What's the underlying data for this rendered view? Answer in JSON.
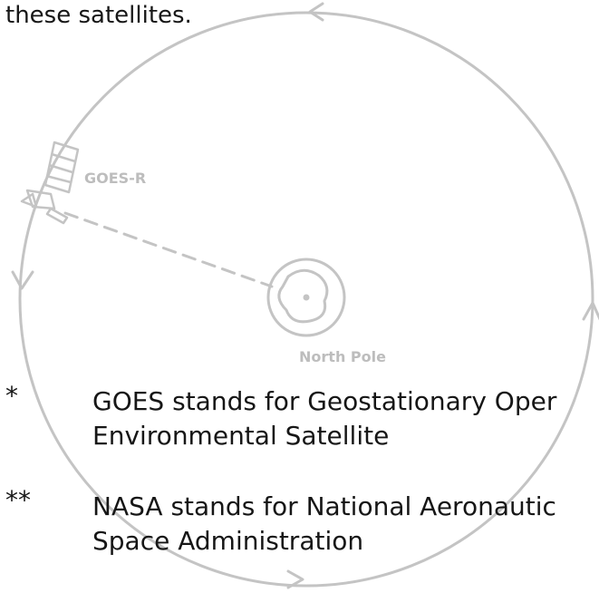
{
  "intro_text": "these satellites.",
  "diagram": {
    "satellite_label": "GOES-R",
    "center_label": "North Pole"
  },
  "footnotes": [
    {
      "marker": "*",
      "lines": [
        "GOES stands for Geostationary Oper",
        "Environmental Satellite"
      ]
    },
    {
      "marker": "**",
      "lines": [
        "NASA stands for National Aeronautic",
        "Space Administration"
      ]
    }
  ]
}
